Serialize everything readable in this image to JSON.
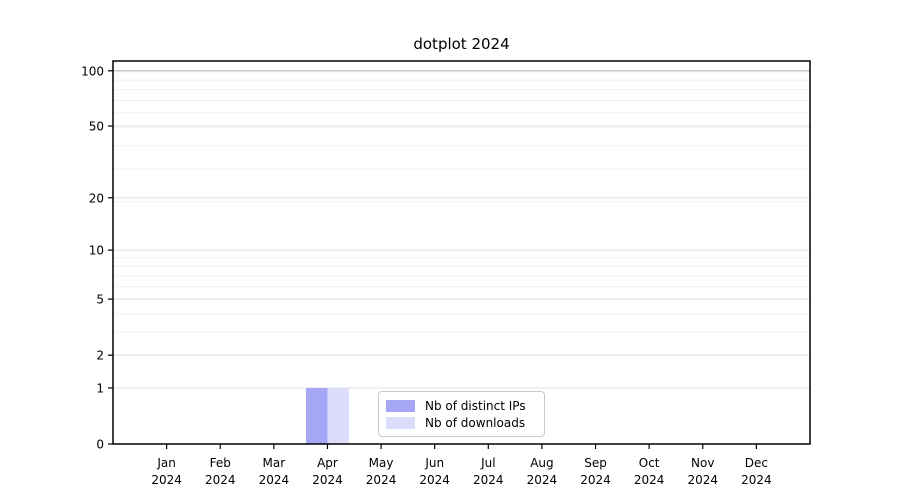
{
  "chart_data": {
    "type": "bar",
    "title": "dotplot 2024",
    "xlabel": "",
    "ylabel": "",
    "year": "2024",
    "months": [
      "Jan",
      "Feb",
      "Mar",
      "Apr",
      "May",
      "Jun",
      "Jul",
      "Aug",
      "Sep",
      "Oct",
      "Nov",
      "Dec"
    ],
    "yscale": "log1p",
    "yticks": [
      0,
      1,
      2,
      5,
      10,
      20,
      50,
      100
    ],
    "ylim": [
      0,
      113
    ],
    "grid": true,
    "legend_position": "lower center",
    "series": [
      {
        "name": "Nb of distinct IPs",
        "color": "#a5a6f6",
        "values": [
          0,
          0,
          0,
          1,
          0,
          0,
          0,
          0,
          0,
          0,
          0,
          0
        ]
      },
      {
        "name": "Nb of downloads",
        "color": "#dcdcfb",
        "values": [
          0,
          0,
          0,
          1,
          0,
          0,
          0,
          0,
          0,
          0,
          0,
          0
        ]
      }
    ]
  }
}
